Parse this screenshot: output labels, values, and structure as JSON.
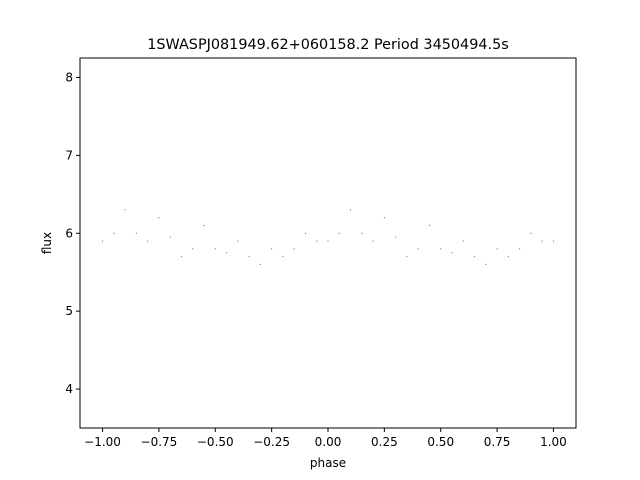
{
  "chart_data": {
    "type": "scatter",
    "title": "1SWASPJ081949.62+060158.2 Period 3450494.5s",
    "xlabel": "phase",
    "ylabel": "flux",
    "xlim": [
      -1.1,
      1.1
    ],
    "ylim": [
      3.5,
      8.25
    ],
    "xticks": [
      -1.0,
      -0.75,
      -0.5,
      -0.25,
      0.0,
      0.25,
      0.5,
      0.75,
      1.0
    ],
    "xtick_labels": [
      "−1.00",
      "−0.75",
      "−0.50",
      "−0.25",
      "0.00",
      "0.25",
      "0.50",
      "0.75",
      "1.00"
    ],
    "yticks": [
      4,
      5,
      6,
      7,
      8
    ],
    "ytick_labels": [
      "4",
      "5",
      "6",
      "7",
      "8"
    ],
    "grid": false,
    "marker_color": "#1f77b4",
    "series": [
      {
        "x": [
          -1.0,
          -0.95,
          -0.9,
          -0.85,
          -0.8,
          -0.75,
          -0.7,
          -0.65,
          -0.6,
          -0.55,
          -0.5,
          -0.45,
          -0.4,
          -0.35,
          -0.3,
          -0.25,
          -0.2,
          -0.15,
          -0.1,
          -0.05,
          0.0,
          0.05,
          0.1,
          0.15,
          0.2,
          0.25,
          0.3,
          0.35,
          0.4,
          0.45,
          0.5,
          0.55,
          0.6,
          0.65,
          0.7,
          0.75,
          0.8,
          0.85,
          0.9,
          0.95,
          1.0
        ],
        "y": [
          5.9,
          6.0,
          6.3,
          6.0,
          5.9,
          6.2,
          5.95,
          5.7,
          5.8,
          6.1,
          5.8,
          5.75,
          5.9,
          5.7,
          5.6,
          5.8,
          5.7,
          5.8,
          6.0,
          5.9,
          5.9,
          6.0,
          6.3,
          6.0,
          5.9,
          6.2,
          5.95,
          5.7,
          5.8,
          6.1,
          5.8,
          5.75,
          5.9,
          5.7,
          5.6,
          5.8,
          5.7,
          5.8,
          6.0,
          5.9,
          5.9
        ]
      }
    ]
  }
}
